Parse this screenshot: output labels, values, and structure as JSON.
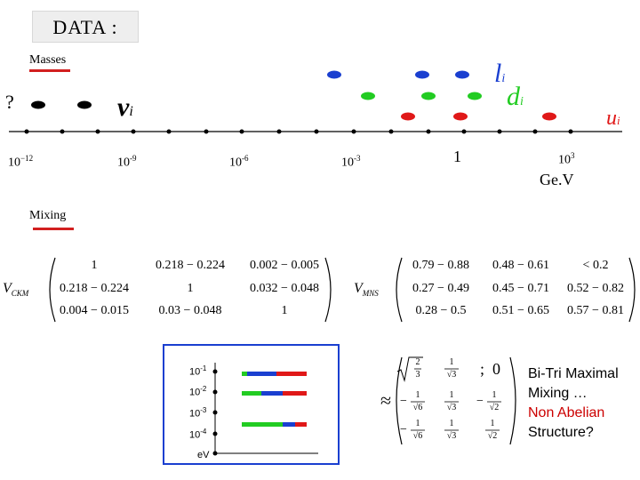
{
  "title": "DATA :",
  "masses_label": "Masses",
  "question_mark": "?",
  "particle_labels": {
    "nu": "ν",
    "nu_sub": "i",
    "l": "l",
    "l_sub": "i",
    "d": "d",
    "d_sub": "i",
    "u": "u",
    "u_sub": "i"
  },
  "axis": {
    "ticks": [
      {
        "base": "10",
        "exp": "−12"
      },
      {
        "base": "10",
        "exp": "-9"
      },
      {
        "base": "10",
        "exp": "-6"
      },
      {
        "base": "10",
        "exp": "-3"
      },
      {
        "base": "1",
        "exp": ""
      },
      {
        "base": "10",
        "exp": "3"
      }
    ],
    "unit": "Ge.V"
  },
  "colors": {
    "neutrino": "#000000",
    "lepton": "#1a3fd0",
    "down": "#22cc22",
    "up": "#e01818",
    "underline": "#d21f1f"
  },
  "mixing_label": "Mixing",
  "ckm": {
    "label": "V",
    "label_sub": "CKM",
    "rows": [
      [
        "1",
        "0.218 − 0.224",
        "0.002 − 0.005"
      ],
      [
        "0.218 − 0.224",
        "1",
        "0.032 − 0.048"
      ],
      [
        "0.004 − 0.015",
        "0.03 − 0.048",
        "1"
      ]
    ]
  },
  "mns": {
    "label": "V",
    "label_sub": "MNS",
    "rows": [
      [
        "0.79 − 0.88",
        "0.48 − 0.61",
        "< 0.2"
      ],
      [
        "0.27 − 0.49",
        "0.45 − 0.71",
        "0.52 − 0.82"
      ],
      [
        "0.28 − 0.5",
        "0.51 − 0.65",
        "0.57 − 0.81"
      ]
    ]
  },
  "inset": {
    "ticks": [
      {
        "base": "10",
        "exp": "-1"
      },
      {
        "base": "10",
        "exp": "-2"
      },
      {
        "base": "10",
        "exp": "-3"
      },
      {
        "base": "10",
        "exp": "-4"
      }
    ],
    "unit": "eV",
    "border_color": "#1a3fd0"
  },
  "tribimaximal": {
    "approx": "≈",
    "separator": ";",
    "zero": "0",
    "rows": [
      [
        {
          "sign": "",
          "num": "2",
          "den": "3",
          "root_all": true
        },
        {
          "sign": "",
          "num": "1",
          "den": "√3"
        },
        {
          "sign": "",
          "num": "0",
          "den": ""
        }
      ],
      [
        {
          "sign": "−",
          "num": "1",
          "den": "√6"
        },
        {
          "sign": "",
          "num": "1",
          "den": "√3"
        },
        {
          "sign": "−",
          "num": "1",
          "den": "√2"
        }
      ],
      [
        {
          "sign": "−",
          "num": "1",
          "den": "√6"
        },
        {
          "sign": "",
          "num": "1",
          "den": "√3"
        },
        {
          "sign": "",
          "num": "1",
          "den": "√2"
        }
      ]
    ]
  },
  "notes": {
    "line1": "Bi-Tri Maximal",
    "line2": "Mixing …",
    "line3": "Non Abelian",
    "line4": "Structure?"
  }
}
